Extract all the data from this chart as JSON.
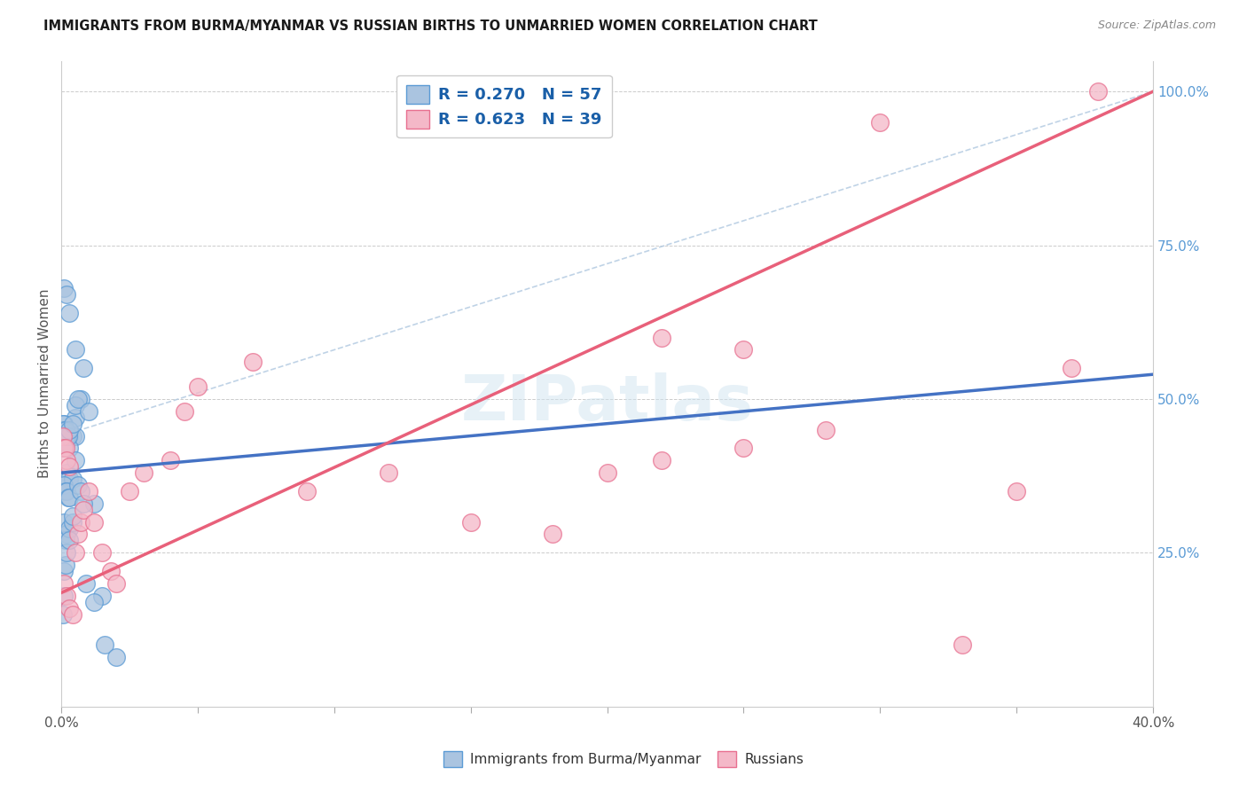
{
  "title": "IMMIGRANTS FROM BURMA/MYANMAR VS RUSSIAN BIRTHS TO UNMARRIED WOMEN CORRELATION CHART",
  "source": "Source: ZipAtlas.com",
  "ylabel": "Births to Unmarried Women",
  "right_yticks": [
    0.0,
    0.25,
    0.5,
    0.75,
    1.0
  ],
  "right_yticklabels": [
    "",
    "25.0%",
    "50.0%",
    "75.0%",
    "100.0%"
  ],
  "legend_blue_label": "Immigrants from Burma/Myanmar",
  "legend_pink_label": "Russians",
  "legend_text_blue": "R = 0.270   N = 57",
  "legend_text_pink": "R = 0.623   N = 39",
  "blue_color": "#aac4e0",
  "blue_edge_color": "#5b9bd5",
  "pink_color": "#f4b8c8",
  "pink_edge_color": "#e87090",
  "blue_line_color": "#4472c4",
  "pink_line_color": "#e8607a",
  "dashed_line_color": "#b0c8e0",
  "blue_scatter_x": [
    0.001,
    0.002,
    0.003,
    0.001,
    0.002,
    0.003,
    0.004,
    0.001,
    0.0015,
    0.002,
    0.0025,
    0.003,
    0.004,
    0.005,
    0.001,
    0.002,
    0.003,
    0.005,
    0.007,
    0.001,
    0.002,
    0.0015,
    0.003,
    0.004,
    0.001,
    0.0005,
    0.001,
    0.0015,
    0.002,
    0.0025,
    0.003,
    0.004,
    0.005,
    0.006,
    0.001,
    0.002,
    0.003,
    0.005,
    0.008,
    0.01,
    0.012,
    0.015,
    0.0005,
    0.001,
    0.0008,
    0.0015,
    0.002,
    0.003,
    0.004,
    0.005,
    0.006,
    0.007,
    0.008,
    0.009,
    0.012,
    0.016,
    0.02
  ],
  "blue_scatter_y": [
    0.44,
    0.44,
    0.44,
    0.42,
    0.38,
    0.37,
    0.37,
    0.36,
    0.35,
    0.35,
    0.34,
    0.34,
    0.44,
    0.44,
    0.43,
    0.43,
    0.42,
    0.47,
    0.5,
    0.3,
    0.28,
    0.27,
    0.29,
    0.3,
    0.46,
    0.46,
    0.45,
    0.45,
    0.44,
    0.44,
    0.45,
    0.46,
    0.49,
    0.5,
    0.68,
    0.67,
    0.64,
    0.58,
    0.55,
    0.48,
    0.33,
    0.18,
    0.15,
    0.18,
    0.22,
    0.23,
    0.25,
    0.27,
    0.31,
    0.4,
    0.36,
    0.35,
    0.33,
    0.2,
    0.17,
    0.1,
    0.08
  ],
  "pink_scatter_x": [
    0.0005,
    0.001,
    0.0015,
    0.002,
    0.003,
    0.001,
    0.002,
    0.003,
    0.004,
    0.005,
    0.006,
    0.007,
    0.008,
    0.01,
    0.012,
    0.015,
    0.018,
    0.02,
    0.025,
    0.03,
    0.04,
    0.045,
    0.05,
    0.07,
    0.09,
    0.12,
    0.15,
    0.18,
    0.2,
    0.22,
    0.25,
    0.28,
    0.3,
    0.22,
    0.25,
    0.33,
    0.35,
    0.37,
    0.38
  ],
  "pink_scatter_y": [
    0.44,
    0.42,
    0.42,
    0.4,
    0.39,
    0.2,
    0.18,
    0.16,
    0.15,
    0.25,
    0.28,
    0.3,
    0.32,
    0.35,
    0.3,
    0.25,
    0.22,
    0.2,
    0.35,
    0.38,
    0.4,
    0.48,
    0.52,
    0.56,
    0.35,
    0.38,
    0.3,
    0.28,
    0.38,
    0.4,
    0.42,
    0.45,
    0.95,
    0.6,
    0.58,
    0.1,
    0.35,
    0.55,
    1.0
  ],
  "blue_line_x": [
    0.0,
    0.4
  ],
  "blue_line_y": [
    0.38,
    0.54
  ],
  "pink_line_x": [
    0.0,
    0.4
  ],
  "pink_line_y": [
    0.185,
    1.0
  ],
  "dashed_line_x": [
    0.0,
    0.4
  ],
  "dashed_line_y": [
    0.44,
    1.0
  ],
  "xlim": [
    0.0,
    0.4
  ],
  "ylim": [
    0.0,
    1.05
  ],
  "xtick_positions": [
    0.0,
    0.05,
    0.1,
    0.15,
    0.2,
    0.25,
    0.3,
    0.35,
    0.4
  ],
  "bg_color": "#ffffff",
  "grid_color": "#cccccc"
}
